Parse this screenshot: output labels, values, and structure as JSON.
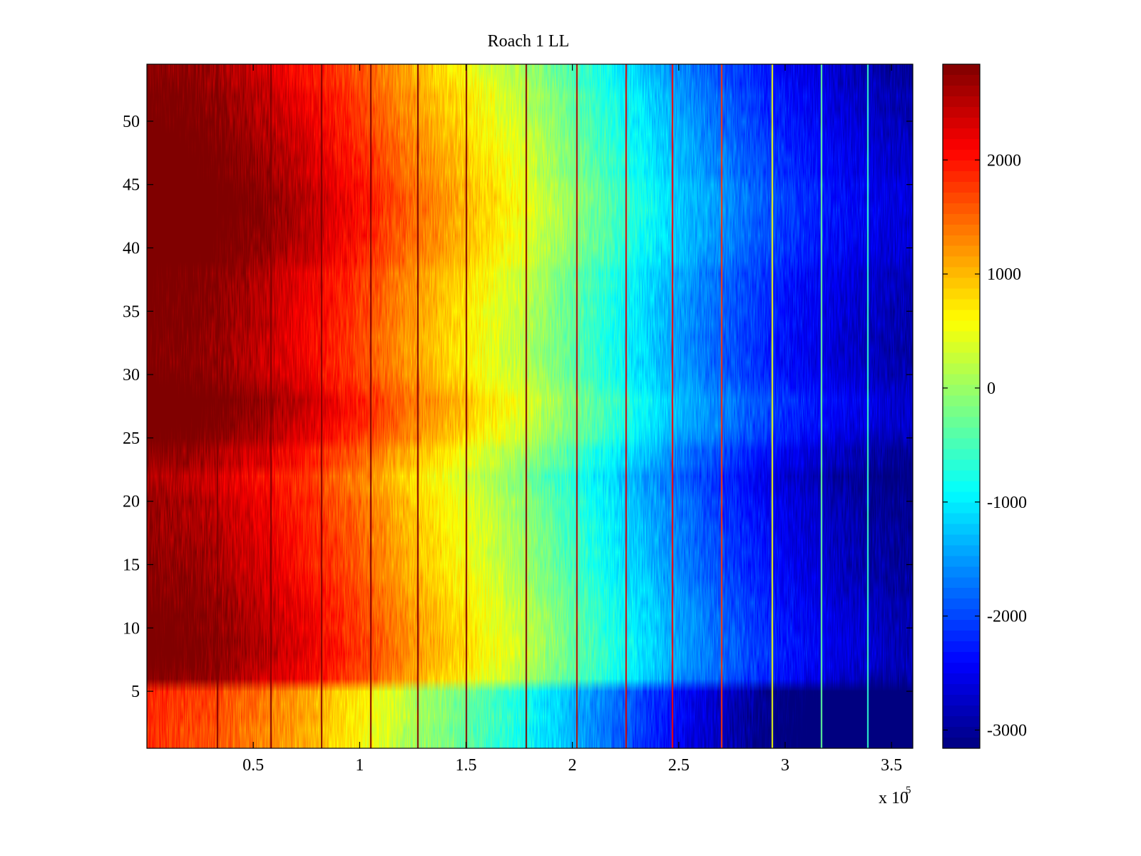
{
  "chart_data": {
    "type": "heatmap",
    "title": "Roach 1 LL",
    "xlabel": "",
    "ylabel": "",
    "x_exponent_label": {
      "base": "x 10",
      "exponent": "5"
    },
    "xlim": [
      0,
      3.6
    ],
    "ylim": [
      0.5,
      54.5
    ],
    "x_ticks": [
      {
        "value": 0.5,
        "label": "0.5"
      },
      {
        "value": 1,
        "label": "1"
      },
      {
        "value": 1.5,
        "label": "1.5"
      },
      {
        "value": 2,
        "label": "2"
      },
      {
        "value": 2.5,
        "label": "2.5"
      },
      {
        "value": 3,
        "label": "3"
      },
      {
        "value": 3.5,
        "label": "3.5"
      }
    ],
    "y_ticks": [
      {
        "value": 5,
        "label": "5"
      },
      {
        "value": 10,
        "label": "10"
      },
      {
        "value": 15,
        "label": "15"
      },
      {
        "value": 20,
        "label": "20"
      },
      {
        "value": 25,
        "label": "25"
      },
      {
        "value": 30,
        "label": "30"
      },
      {
        "value": 35,
        "label": "35"
      },
      {
        "value": 40,
        "label": "40"
      },
      {
        "value": 45,
        "label": "45"
      },
      {
        "value": 50,
        "label": "50"
      }
    ],
    "colorbar": {
      "colormap": "jet",
      "clim": [
        -3160,
        2840
      ],
      "ticks": [
        {
          "value": 2000,
          "label": "2000"
        },
        {
          "value": 1000,
          "label": "1000"
        },
        {
          "value": 0,
          "label": "0"
        },
        {
          "value": -1000,
          "label": "-1000"
        },
        {
          "value": -2000,
          "label": "-2000"
        },
        {
          "value": -3000,
          "label": "-3000"
        }
      ]
    },
    "rows": 54,
    "column_profile": {
      "x": [
        0,
        0.25,
        0.5,
        0.75,
        1.0,
        1.25,
        1.5,
        1.75,
        2.0,
        2.25,
        2.5,
        2.75,
        3.0,
        3.25,
        3.5,
        3.6
      ],
      "value": [
        2700,
        2550,
        2250,
        1900,
        1450,
        900,
        450,
        0,
        -600,
        -1150,
        -1700,
        -2150,
        -2550,
        -2850,
        -3050,
        -3100
      ]
    },
    "row_offsets": [
      -900,
      -900,
      -850,
      -850,
      -800,
      200,
      300,
      350,
      350,
      300,
      300,
      250,
      200,
      150,
      100,
      100,
      50,
      50,
      0,
      0,
      -100,
      -150,
      50,
      100,
      350,
      450,
      500,
      550,
      400,
      300,
      250,
      250,
      250,
      300,
      300,
      300,
      350,
      350,
      500,
      550,
      600,
      600,
      650,
      650,
      600,
      500,
      500,
      450,
      400,
      350,
      300,
      300,
      200,
      150
    ],
    "stripes": {
      "x": [
        0.33,
        0.58,
        0.82,
        1.05,
        1.27,
        1.5,
        1.78,
        2.02,
        2.25,
        2.47,
        2.7,
        2.94,
        3.17,
        3.39
      ],
      "value": [
        2840,
        2840,
        2840,
        2840,
        2840,
        2840,
        2840,
        2500,
        2300,
        2100,
        1800,
        500,
        -300,
        -600
      ]
    },
    "noise_amplitude": 250
  }
}
